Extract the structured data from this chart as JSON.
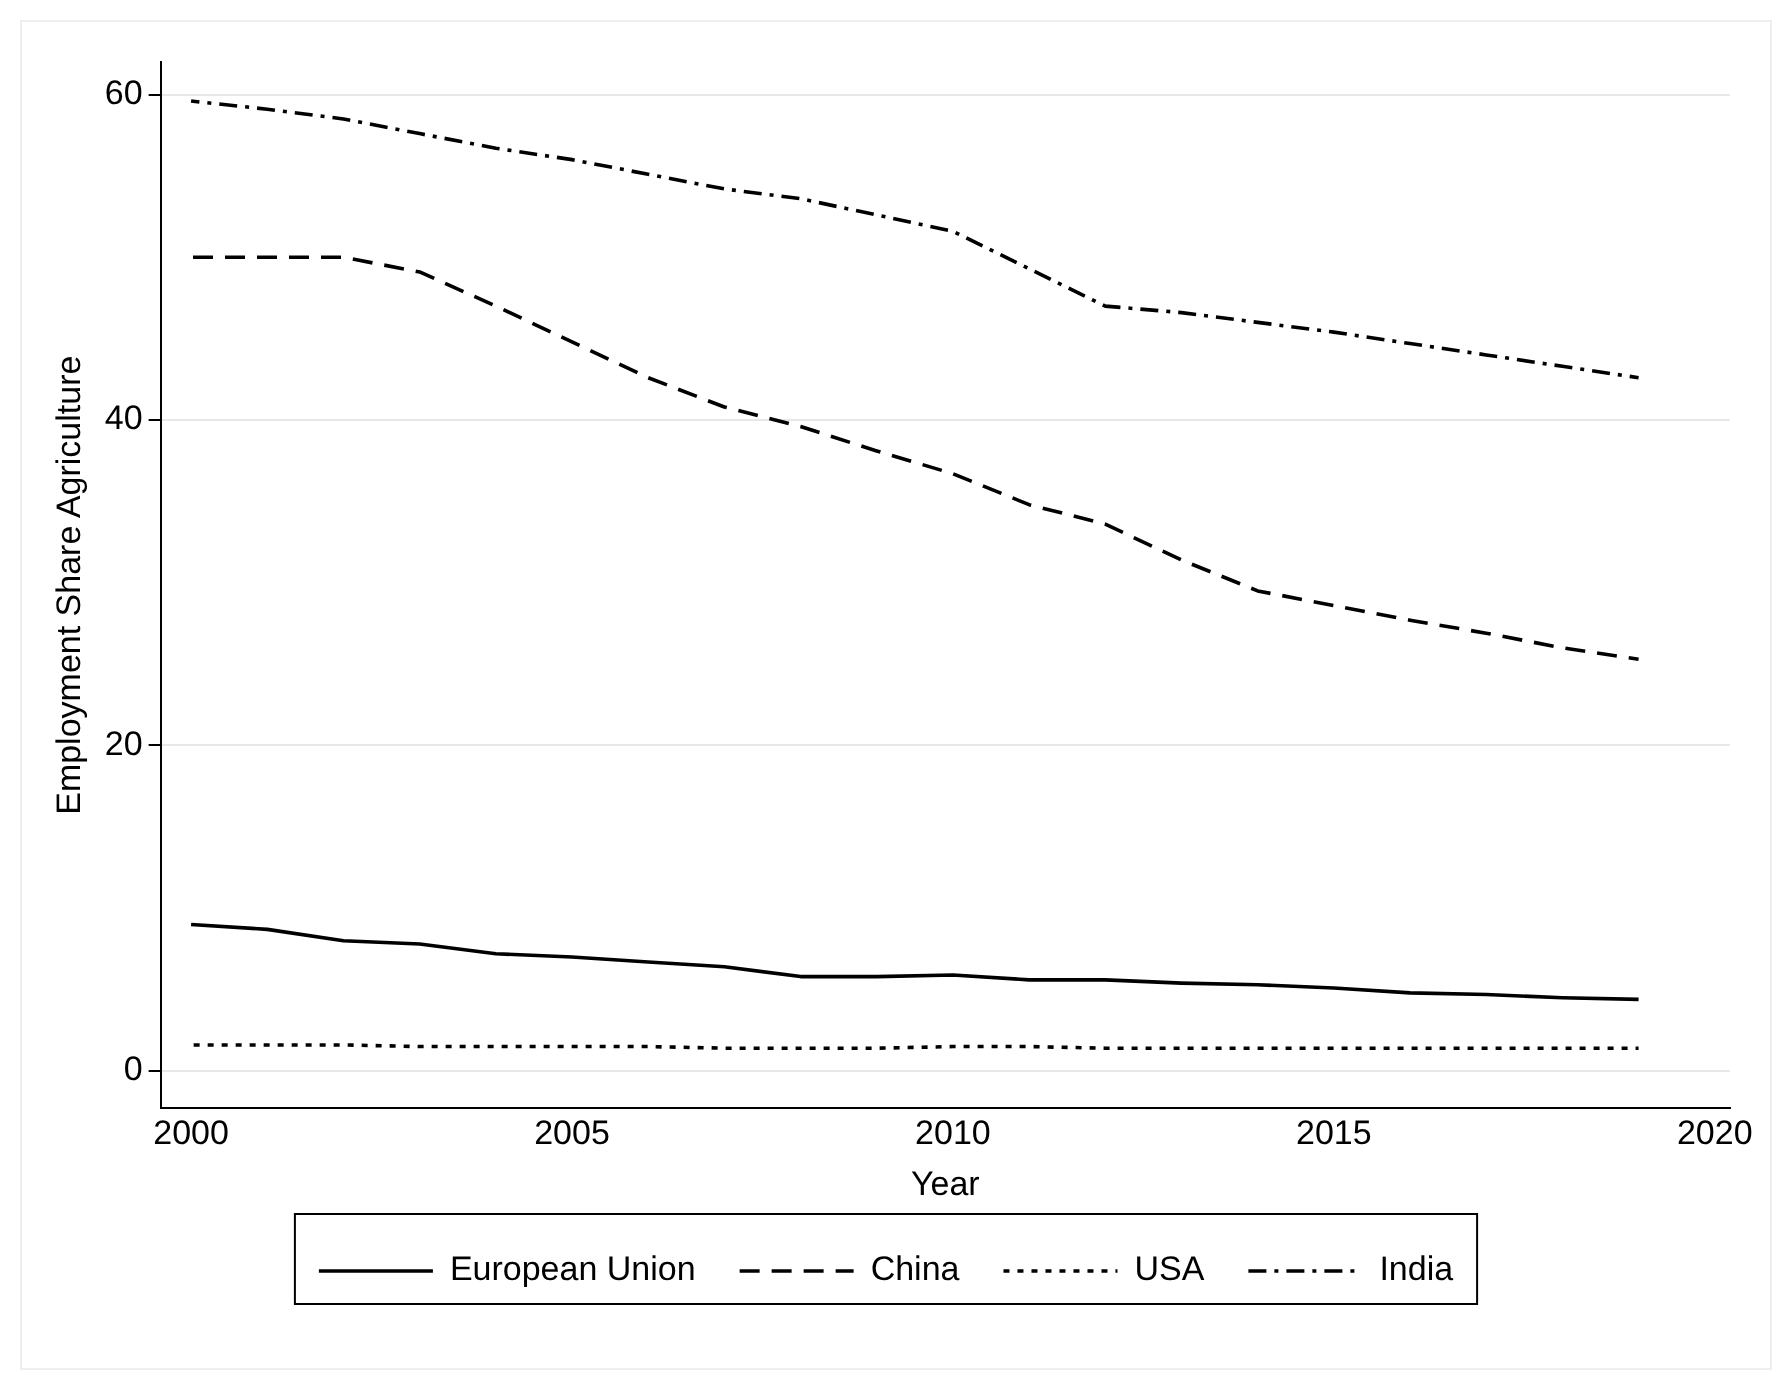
{
  "chart_data": {
    "type": "line",
    "xlabel": "Year",
    "ylabel": "Employment Share Agriculture",
    "x": [
      2000,
      2001,
      2002,
      2003,
      2004,
      2005,
      2006,
      2007,
      2008,
      2009,
      2010,
      2011,
      2012,
      2013,
      2014,
      2015,
      2016,
      2017,
      2018,
      2019
    ],
    "xlim": [
      1999.6,
      2020.2
    ],
    "xticks": [
      2000,
      2005,
      2010,
      2015,
      2020
    ],
    "ylim": [
      -2.3,
      62
    ],
    "yticks": [
      0,
      20,
      40,
      60
    ],
    "grid": "y",
    "legend": "bottom",
    "marker": "none",
    "series": [
      {
        "name": "European Union",
        "color": "#000000",
        "line_style": "solid",
        "values": [
          9.0,
          8.7,
          8.0,
          7.8,
          7.2,
          7.0,
          6.7,
          6.4,
          5.8,
          5.8,
          5.9,
          5.6,
          5.6,
          5.4,
          5.3,
          5.1,
          4.8,
          4.7,
          4.5,
          4.4
        ]
      },
      {
        "name": "China",
        "color": "#000000",
        "line_style": "dashed",
        "values": [
          50.0,
          50.0,
          50.0,
          49.1,
          47.0,
          44.8,
          42.6,
          40.8,
          39.6,
          38.1,
          36.7,
          34.8,
          33.6,
          31.4,
          29.5,
          28.6,
          27.7,
          26.9,
          26.0,
          25.3
        ]
      },
      {
        "name": "USA",
        "color": "#000000",
        "line_style": "dotted",
        "values": [
          1.6,
          1.6,
          1.6,
          1.5,
          1.5,
          1.5,
          1.5,
          1.4,
          1.4,
          1.4,
          1.5,
          1.5,
          1.4,
          1.4,
          1.4,
          1.4,
          1.4,
          1.4,
          1.4,
          1.4
        ]
      },
      {
        "name": "India",
        "color": "#000000",
        "line_style": "dashdot",
        "values": [
          59.6,
          59.1,
          58.5,
          57.6,
          56.7,
          56.0,
          55.1,
          54.2,
          53.6,
          52.6,
          51.6,
          49.3,
          47.0,
          46.6,
          46.0,
          45.4,
          44.7,
          44.0,
          43.3,
          42.6
        ]
      }
    ]
  }
}
